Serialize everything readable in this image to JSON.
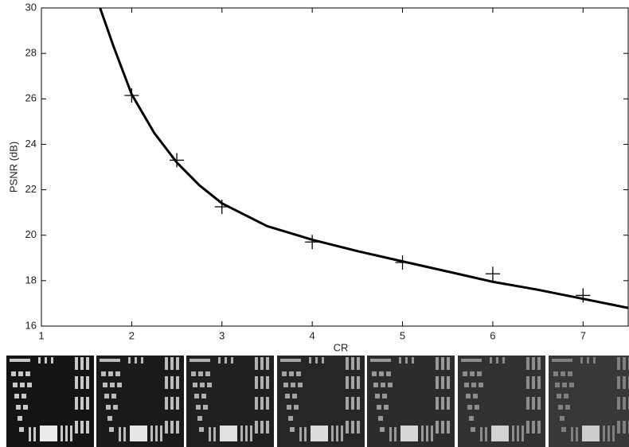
{
  "chart_data": {
    "type": "line",
    "x_label": "CR",
    "y_label": "PSNR (dB)",
    "xlim": [
      1,
      7.5
    ],
    "ylim": [
      16,
      30
    ],
    "xticks": [
      1,
      2,
      3,
      4,
      5,
      6,
      7
    ],
    "yticks": [
      16,
      18,
      20,
      22,
      24,
      26,
      28,
      30
    ],
    "series": [
      {
        "style": "line",
        "color": "#000000",
        "x": [
          1.65,
          1.8,
          2,
          2.25,
          2.5,
          2.75,
          3,
          3.5,
          4,
          4.5,
          5,
          5.5,
          6,
          6.5,
          7,
          7.5
        ],
        "values": [
          30,
          28.3,
          26.2,
          24.5,
          23.2,
          22.2,
          21.4,
          20.4,
          19.8,
          19.3,
          18.85,
          18.4,
          17.95,
          17.6,
          17.2,
          16.8
        ]
      },
      {
        "style": "marker",
        "marker": "+",
        "color": "#000000",
        "x": [
          2,
          2.5,
          3,
          4,
          5,
          6,
          7
        ],
        "values": [
          26.15,
          23.3,
          21.25,
          19.7,
          18.8,
          18.3,
          17.35
        ]
      }
    ]
  }
}
